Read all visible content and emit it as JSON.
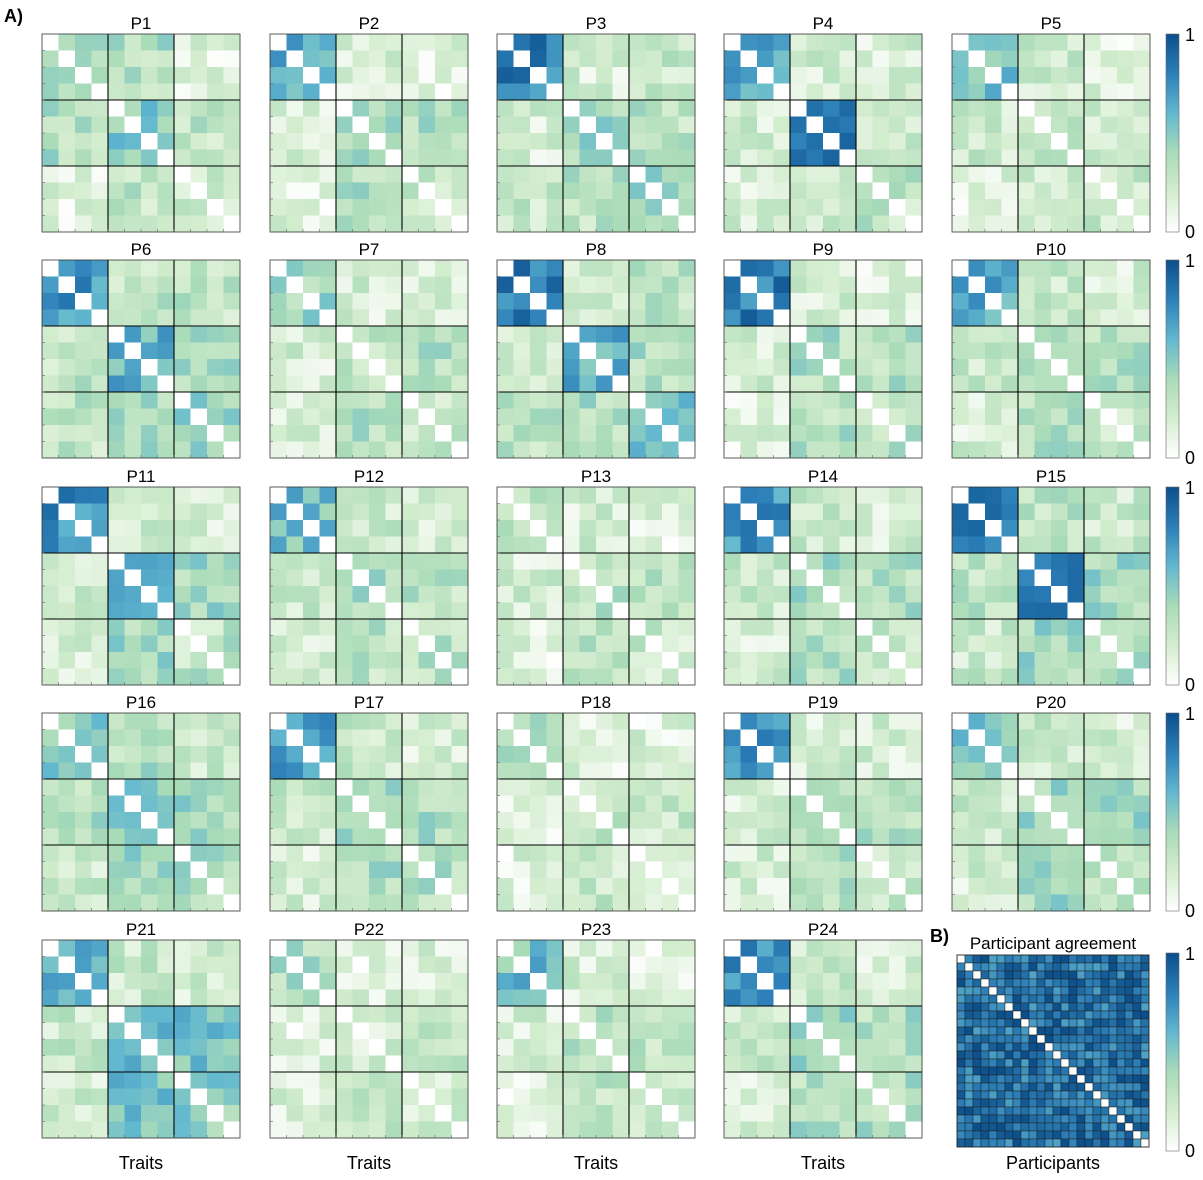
{
  "panel_labels": {
    "a": "A)",
    "b": "B)"
  },
  "xlabels": {
    "traits": "Traits",
    "participants": "Participants"
  },
  "colorbar": {
    "max_label": "1",
    "min_label": "0",
    "colors": [
      "#ffffff",
      "#d4edcf",
      "#a9dbb8",
      "#62b8cf",
      "#2c7fb8",
      "#0b4f8c"
    ]
  },
  "frame_color": "#000000",
  "chart_data": [
    {
      "type": "heatmap",
      "panel": "A",
      "xlabel": "Traits",
      "value_range": [
        0,
        1
      ],
      "traits": 12,
      "blocks": [
        4,
        4,
        4
      ],
      "matrix_titles": [
        "P1",
        "P2",
        "P3",
        "P4",
        "P5",
        "P6",
        "P7",
        "P8",
        "P9",
        "P10",
        "P11",
        "P12",
        "P13",
        "P14",
        "P15",
        "P16",
        "P17",
        "P18",
        "P19",
        "P20",
        "P21",
        "P22",
        "P23",
        "P24"
      ],
      "block_means": [
        [
          0.35,
          0.35,
          0.5,
          0.15,
          0.25,
          0.3
        ],
        [
          0.65,
          0.2,
          0.4,
          0.15,
          0.3,
          0.35
        ],
        [
          0.8,
          0.2,
          0.4,
          0.25,
          0.4,
          0.3
        ],
        [
          0.65,
          0.2,
          0.85,
          0.2,
          0.3,
          0.2
        ],
        [
          0.55,
          0.25,
          0.35,
          0.15,
          0.25,
          0.25
        ],
        [
          0.7,
          0.3,
          0.6,
          0.3,
          0.45,
          0.35
        ],
        [
          0.4,
          0.2,
          0.3,
          0.15,
          0.25,
          0.35
        ],
        [
          0.8,
          0.25,
          0.6,
          0.3,
          0.5,
          0.35
        ],
        [
          0.8,
          0.2,
          0.35,
          0.15,
          0.3,
          0.35
        ],
        [
          0.65,
          0.25,
          0.35,
          0.2,
          0.3,
          0.35
        ],
        [
          0.75,
          0.2,
          0.7,
          0.2,
          0.3,
          0.4
        ],
        [
          0.55,
          0.25,
          0.35,
          0.2,
          0.3,
          0.3
        ],
        [
          0.35,
          0.2,
          0.3,
          0.15,
          0.25,
          0.3
        ],
        [
          0.7,
          0.25,
          0.4,
          0.2,
          0.3,
          0.35
        ],
        [
          0.85,
          0.3,
          0.75,
          0.25,
          0.4,
          0.4
        ],
        [
          0.5,
          0.35,
          0.5,
          0.25,
          0.35,
          0.4
        ],
        [
          0.7,
          0.25,
          0.45,
          0.2,
          0.35,
          0.35
        ],
        [
          0.35,
          0.15,
          0.3,
          0.15,
          0.2,
          0.25
        ],
        [
          0.7,
          0.2,
          0.4,
          0.2,
          0.25,
          0.35
        ],
        [
          0.5,
          0.25,
          0.4,
          0.2,
          0.35,
          0.4
        ],
        [
          0.65,
          0.25,
          0.55,
          0.2,
          0.45,
          0.55
        ],
        [
          0.35,
          0.15,
          0.2,
          0.15,
          0.2,
          0.25
        ],
        [
          0.55,
          0.2,
          0.35,
          0.15,
          0.3,
          0.3
        ],
        [
          0.75,
          0.25,
          0.45,
          0.2,
          0.35,
          0.35
        ]
      ]
    },
    {
      "type": "heatmap",
      "panel": "B",
      "title": "Participant agreement",
      "xlabel": "Participants",
      "size": 24,
      "value_range": [
        0,
        1
      ],
      "typical_value": 0.85
    }
  ]
}
